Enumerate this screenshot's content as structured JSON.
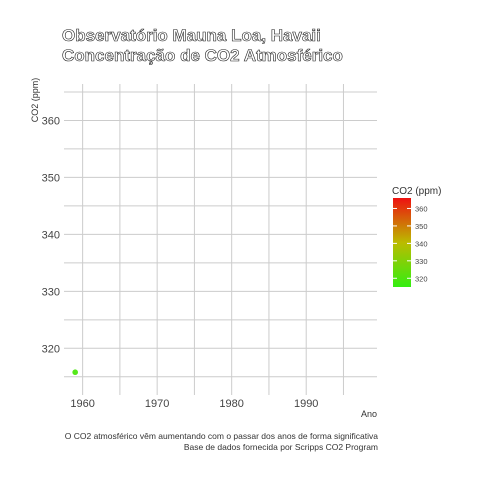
{
  "chart_data": {
    "type": "scatter",
    "title": "Observatório Mauna Loa, Havaii",
    "subtitle": "Concentração de CO2 Atmosférico",
    "xlabel": "Ano",
    "ylabel": "CO2 (ppm)",
    "xlim": [
      1957.5,
      1999.5
    ],
    "ylim": [
      311.8,
      366.4
    ],
    "x_ticks": [
      1960,
      1970,
      1980,
      1990
    ],
    "y_ticks": [
      320,
      330,
      340,
      350,
      360
    ],
    "grid": true,
    "points": [
      {
        "x": 1959.0,
        "y": 315.8
      }
    ],
    "colors": {
      "low": "#33ee11",
      "high": "#ee1111",
      "grid": "#cccccc",
      "point": "#55e81a"
    },
    "legend": {
      "title": "CO2 (ppm)",
      "placement": "right",
      "range": [
        315,
        366
      ],
      "ticks": [
        320,
        330,
        340,
        350,
        360
      ]
    },
    "caption": [
      "O CO2 atmosférico vêm aumentando com o passar dos anos de forma significativa",
      "Base de dados fornecida por Scripps CO2 Program"
    ]
  }
}
